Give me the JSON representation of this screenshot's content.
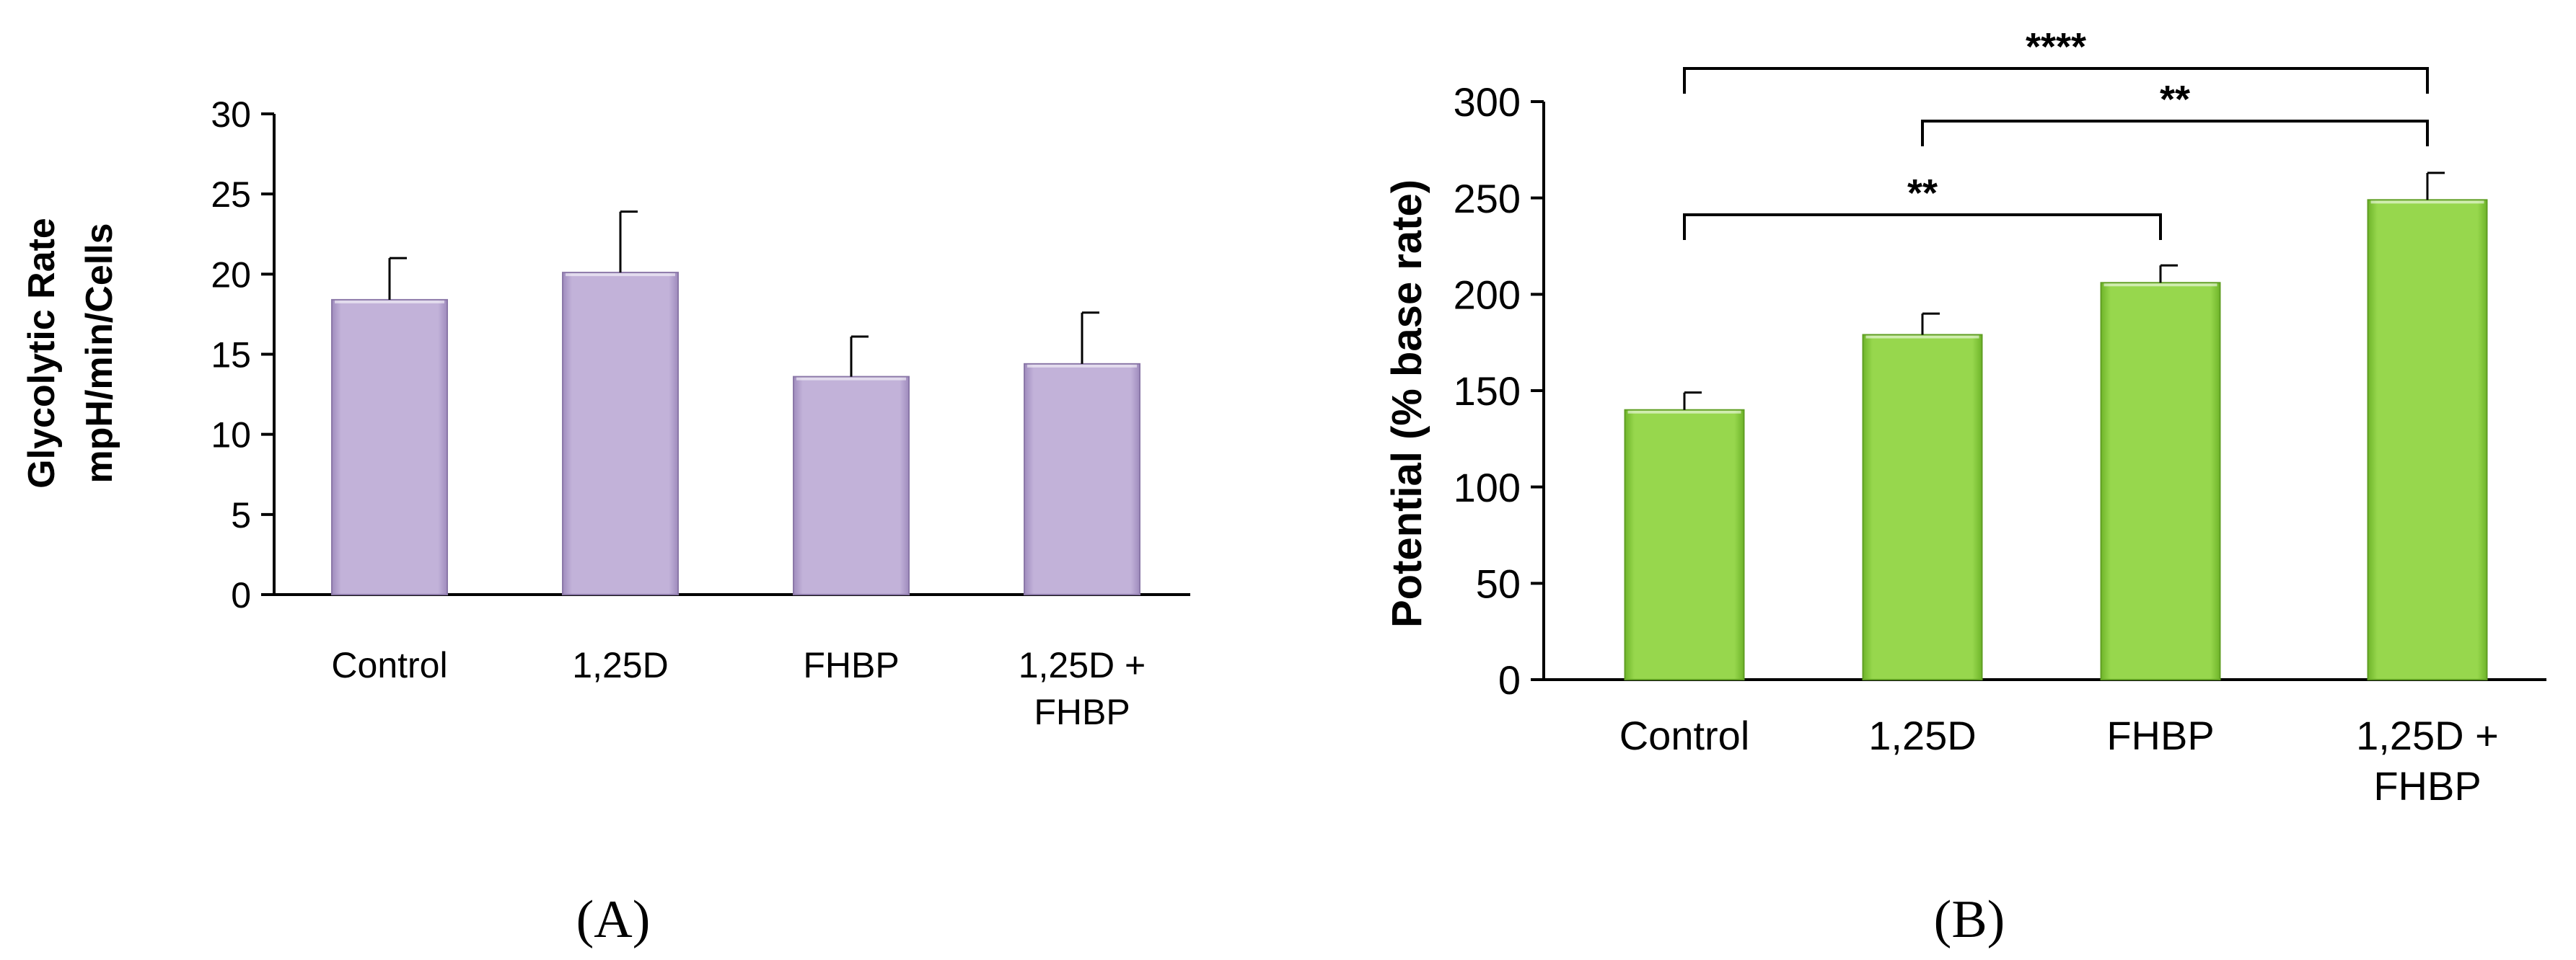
{
  "chart_data": [
    {
      "type": "bar",
      "panel_label": "(A)",
      "ylabel_lines": [
        "Glycolytic Rate",
        "mpH/min/Cells"
      ],
      "categories": [
        [
          "Control"
        ],
        [
          "1,25D"
        ],
        [
          "FHBP"
        ],
        [
          "1,25D +",
          "FHBP"
        ]
      ],
      "values": [
        18.4,
        20.1,
        13.6,
        14.4
      ],
      "errors": [
        2.6,
        3.8,
        2.5,
        3.2
      ],
      "ylim": [
        0,
        30
      ],
      "yticks": [
        "0",
        "5",
        "10",
        "15",
        "20",
        "25",
        "30"
      ],
      "bar_color": "#c2b2d9",
      "grid": false,
      "significance": []
    },
    {
      "type": "bar",
      "panel_label": "(B)",
      "ylabel_lines": [
        "Potential (% base rate)"
      ],
      "categories": [
        [
          "Control"
        ],
        [
          "1,25D"
        ],
        [
          "FHBP"
        ],
        [
          "1,25D +",
          "FHBP"
        ]
      ],
      "values": [
        140,
        179,
        206,
        249
      ],
      "errors": [
        9,
        11,
        9,
        14
      ],
      "ylim": [
        0,
        300
      ],
      "yticks": [
        "0",
        "50",
        "100",
        "150",
        "200",
        "250",
        "300"
      ],
      "bar_color": "#97d74d",
      "grid": false,
      "significance": [
        {
          "from": 0,
          "to": 3,
          "label": "****"
        },
        {
          "from": 1,
          "to": 3,
          "label": "**"
        },
        {
          "from": 0,
          "to": 2,
          "label": "**"
        }
      ]
    }
  ]
}
